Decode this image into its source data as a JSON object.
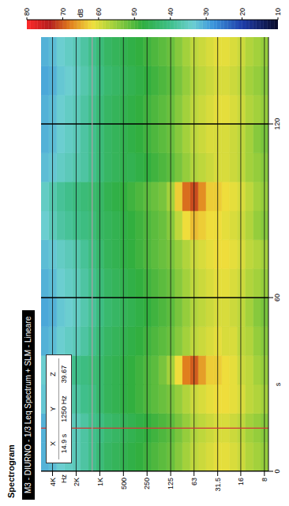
{
  "chart_data": {
    "type": "heatmap",
    "title": "M3 - DIURNO - 1/3 Leq Spectrum + SLM - Lineare",
    "subtitle": "Spectrogram",
    "x_label": "s",
    "y_label": "Hz",
    "x_bins": [
      0,
      10,
      20,
      30,
      40,
      50,
      60,
      70,
      80,
      90,
      100,
      110,
      120,
      130,
      140,
      150
    ],
    "y": [
      8,
      10,
      12.5,
      16,
      20,
      25,
      31.5,
      40,
      50,
      63,
      80,
      100,
      125,
      160,
      200,
      250,
      315,
      400,
      500,
      630,
      800,
      1000,
      1250,
      1600,
      2000,
      2500,
      3150,
      4000,
      5000
    ],
    "cells": [
      [
        55,
        54,
        56,
        55,
        54,
        53,
        55,
        56,
        54,
        55,
        54,
        53,
        55,
        54,
        55
      ],
      [
        56,
        55,
        57,
        56,
        55,
        54,
        56,
        57,
        55,
        56,
        55,
        54,
        56,
        55,
        56
      ],
      [
        57,
        56,
        58,
        58,
        57,
        56,
        57,
        58,
        57,
        58,
        56,
        56,
        57,
        56,
        57
      ],
      [
        59,
        58,
        60,
        59,
        58,
        58,
        59,
        60,
        59,
        60,
        58,
        58,
        59,
        58,
        59
      ],
      [
        60,
        59,
        61,
        61,
        60,
        59,
        60,
        61,
        60,
        61,
        59,
        59,
        60,
        59,
        60
      ],
      [
        61,
        60,
        62,
        62,
        60,
        60,
        61,
        62,
        61,
        62,
        60,
        60,
        61,
        60,
        61
      ],
      [
        61,
        60,
        62,
        63,
        61,
        60,
        61,
        62,
        62,
        63,
        60,
        60,
        61,
        60,
        61
      ],
      [
        60,
        59,
        61,
        63,
        60,
        59,
        60,
        61,
        62,
        63,
        59,
        60,
        60,
        59,
        60
      ],
      [
        59,
        58,
        60,
        66,
        59,
        58,
        59,
        60,
        63,
        67,
        58,
        59,
        59,
        58,
        59
      ],
      [
        58,
        57,
        59,
        70,
        58,
        57,
        58,
        59,
        64,
        71,
        57,
        58,
        58,
        57,
        58
      ],
      [
        56,
        55,
        57,
        68,
        56,
        55,
        56,
        57,
        62,
        69,
        55,
        56,
        56,
        55,
        56
      ],
      [
        54,
        53,
        55,
        62,
        54,
        53,
        54,
        55,
        58,
        63,
        53,
        54,
        54,
        53,
        54
      ],
      [
        52,
        51,
        53,
        56,
        52,
        51,
        52,
        53,
        54,
        56,
        51,
        52,
        52,
        51,
        52
      ],
      [
        51,
        50,
        52,
        53,
        51,
        50,
        51,
        52,
        52,
        53,
        50,
        51,
        51,
        50,
        51
      ],
      [
        50,
        49,
        51,
        51,
        50,
        49,
        50,
        51,
        51,
        52,
        49,
        50,
        50,
        49,
        50
      ],
      [
        49,
        48,
        50,
        50,
        49,
        48,
        49,
        50,
        50,
        51,
        48,
        49,
        49,
        48,
        49
      ],
      [
        48,
        47,
        49,
        49,
        48,
        47,
        48,
        49,
        49,
        50,
        47,
        48,
        48,
        47,
        48
      ],
      [
        47,
        46,
        48,
        48,
        47,
        46,
        47,
        48,
        48,
        49,
        46,
        47,
        47,
        46,
        47
      ],
      [
        46,
        45,
        47,
        47,
        46,
        45,
        46,
        47,
        47,
        48,
        46,
        46,
        46,
        45,
        46
      ],
      [
        45,
        44,
        46,
        46,
        45,
        44,
        45,
        46,
        46,
        47,
        45,
        45,
        45,
        44,
        45
      ],
      [
        44,
        43,
        45,
        45,
        44,
        43,
        44,
        45,
        45,
        46,
        44,
        44,
        44,
        43,
        44
      ],
      [
        42,
        41,
        43,
        43,
        42,
        41,
        42,
        43,
        44,
        44,
        42,
        42,
        42,
        41,
        42
      ],
      [
        40,
        40,
        41,
        42,
        40,
        39,
        40,
        41,
        42,
        43,
        40,
        40,
        40,
        39,
        40
      ],
      [
        38,
        38,
        40,
        41,
        38,
        37,
        38,
        39,
        41,
        42,
        38,
        38,
        38,
        37,
        38
      ],
      [
        36,
        36,
        38,
        40,
        36,
        35,
        36,
        37,
        40,
        41,
        37,
        36,
        36,
        35,
        36
      ],
      [
        35,
        35,
        37,
        39,
        35,
        34,
        35,
        36,
        39,
        40,
        36,
        35,
        35,
        34,
        35
      ],
      [
        34,
        34,
        36,
        38,
        34,
        33,
        34,
        35,
        38,
        39,
        35,
        34,
        34,
        33,
        34
      ],
      [
        32,
        32,
        34,
        36,
        32,
        31,
        32,
        33,
        36,
        37,
        33,
        32,
        32,
        31,
        32
      ],
      [
        31,
        31,
        33,
        34,
        31,
        30,
        31,
        32,
        34,
        35,
        32,
        31,
        31,
        30,
        31
      ]
    ],
    "xlim": [
      0,
      150
    ],
    "xticks": [
      0,
      60,
      120
    ],
    "ylim": [
      7.1,
      5600
    ],
    "yticks": [
      8,
      16,
      31.5,
      63,
      125,
      250,
      500,
      {
        "value": 1000,
        "label": "1K"
      },
      {
        "value": 2000,
        "label": "2K"
      },
      {
        "value": 4000,
        "label": "4K"
      }
    ],
    "log": "y",
    "grid": true,
    "colorbar": {
      "label": "dB",
      "range": [
        10,
        80
      ],
      "ticks": [
        80,
        70,
        60,
        50,
        40,
        30,
        20,
        10
      ]
    },
    "cursor": {
      "headers": [
        "X",
        "Y",
        "Z"
      ],
      "x": 14.9,
      "x_label": "14.9 s",
      "y": 1250,
      "y_label": "1250 Hz",
      "z": 39.67
    }
  }
}
